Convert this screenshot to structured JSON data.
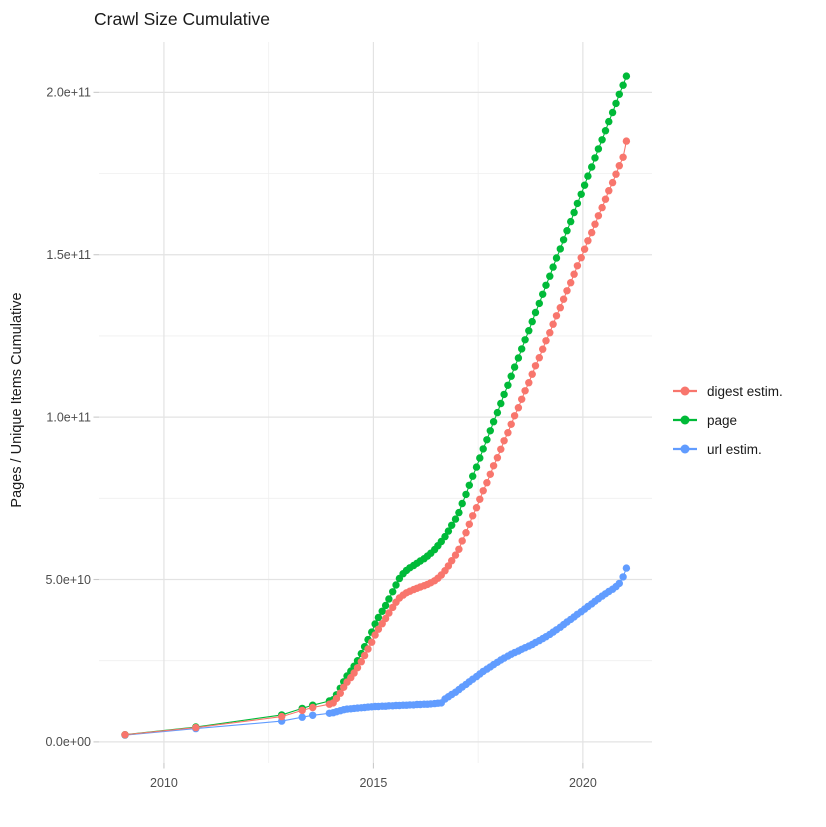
{
  "title": "Crawl Size Cumulative",
  "axes": {
    "y_title": "Pages / Unique Items Cumulative",
    "x_ticks": [
      {
        "value": 2010,
        "label": "2010"
      },
      {
        "value": 2015,
        "label": "2015"
      },
      {
        "value": 2020,
        "label": "2020"
      }
    ],
    "x_minor": [
      2012.5,
      2017.5
    ],
    "y_ticks": [
      {
        "value": 0,
        "label": "0.0e+00"
      },
      {
        "value": 50,
        "label": "5.0e+10"
      },
      {
        "value": 100,
        "label": "1.0e+11"
      },
      {
        "value": 150,
        "label": "1.5e+11"
      },
      {
        "value": 200,
        "label": "2.0e+11"
      }
    ],
    "y_minor": [
      25,
      75,
      125,
      175
    ]
  },
  "legend": [
    {
      "label": "digest estim.",
      "color": "#F8766D"
    },
    {
      "label": "page",
      "color": "#00BA38"
    },
    {
      "label": "url estim.",
      "color": "#619CFF"
    }
  ],
  "colors": {
    "grid_major": "#e3e3e3",
    "grid_minor": "#efefef",
    "tick_mark": "#c9c9c9",
    "tick_text": "#4d4d4d"
  },
  "chart_data": {
    "type": "scatter",
    "title": "Crawl Size Cumulative",
    "xlabel": "",
    "ylabel": "Pages / Unique Items Cumulative",
    "x_unit": "year",
    "value_scale": 1000000000.0,
    "xlim": [
      2008.45,
      2021.65
    ],
    "ylim": [
      -6.5,
      215.5
    ],
    "grid": true,
    "legend_position": "right",
    "draw_order": [
      "url estim.",
      "page",
      "digest estim."
    ],
    "series": [
      {
        "name": "digest estim.",
        "color": "#F8766D",
        "points": [
          [
            2009.07,
            2.2
          ],
          [
            2010.76,
            4.4
          ],
          [
            2012.81,
            7.8
          ],
          [
            2013.3,
            9.7
          ],
          [
            2013.55,
            10.6
          ],
          [
            2013.95,
            11.6
          ],
          [
            2014.04,
            12.0
          ],
          [
            2014.12,
            13.4
          ],
          [
            2014.21,
            15.0
          ],
          [
            2014.29,
            16.8
          ],
          [
            2014.37,
            18.4
          ],
          [
            2014.46,
            19.8
          ],
          [
            2014.54,
            21.2
          ],
          [
            2014.62,
            22.8
          ],
          [
            2014.71,
            24.7
          ],
          [
            2014.79,
            26.6
          ],
          [
            2014.87,
            28.6
          ],
          [
            2014.96,
            30.7
          ],
          [
            2015.04,
            32.9
          ],
          [
            2015.12,
            34.7
          ],
          [
            2015.21,
            36.4
          ],
          [
            2015.29,
            38.0
          ],
          [
            2015.37,
            39.7
          ],
          [
            2015.46,
            41.4
          ],
          [
            2015.54,
            43.0
          ],
          [
            2015.62,
            44.3
          ],
          [
            2015.71,
            45.2
          ],
          [
            2015.79,
            45.9
          ],
          [
            2015.87,
            46.4
          ],
          [
            2015.96,
            46.9
          ],
          [
            2016.04,
            47.3
          ],
          [
            2016.12,
            47.7
          ],
          [
            2016.21,
            48.1
          ],
          [
            2016.29,
            48.5
          ],
          [
            2016.37,
            49.0
          ],
          [
            2016.46,
            49.6
          ],
          [
            2016.54,
            50.4
          ],
          [
            2016.62,
            51.4
          ],
          [
            2016.71,
            52.7
          ],
          [
            2016.79,
            54.2
          ],
          [
            2016.87,
            55.8
          ],
          [
            2016.96,
            57.5
          ],
          [
            2017.04,
            59.3
          ],
          [
            2017.12,
            61.9
          ],
          [
            2017.21,
            64.4
          ],
          [
            2017.29,
            67.0
          ],
          [
            2017.37,
            69.6
          ],
          [
            2017.46,
            72.1
          ],
          [
            2017.54,
            74.7
          ],
          [
            2017.62,
            77.3
          ],
          [
            2017.71,
            79.8
          ],
          [
            2017.79,
            82.4
          ],
          [
            2017.87,
            85.0
          ],
          [
            2017.96,
            87.5
          ],
          [
            2018.04,
            90.1
          ],
          [
            2018.12,
            92.7
          ],
          [
            2018.21,
            95.2
          ],
          [
            2018.29,
            97.8
          ],
          [
            2018.37,
            100.4
          ],
          [
            2018.46,
            102.9
          ],
          [
            2018.54,
            105.5
          ],
          [
            2018.62,
            108.1
          ],
          [
            2018.71,
            110.6
          ],
          [
            2018.79,
            113.2
          ],
          [
            2018.87,
            115.8
          ],
          [
            2018.96,
            118.3
          ],
          [
            2019.04,
            120.9
          ],
          [
            2019.12,
            123.5
          ],
          [
            2019.21,
            126.0
          ],
          [
            2019.29,
            128.6
          ],
          [
            2019.37,
            131.2
          ],
          [
            2019.46,
            133.7
          ],
          [
            2019.54,
            136.3
          ],
          [
            2019.62,
            138.9
          ],
          [
            2019.71,
            141.4
          ],
          [
            2019.79,
            144.0
          ],
          [
            2019.87,
            146.6
          ],
          [
            2019.96,
            149.1
          ],
          [
            2020.04,
            151.7
          ],
          [
            2020.12,
            154.3
          ],
          [
            2020.21,
            156.8
          ],
          [
            2020.29,
            159.4
          ],
          [
            2020.37,
            162.0
          ],
          [
            2020.46,
            164.5
          ],
          [
            2020.54,
            167.1
          ],
          [
            2020.62,
            169.7
          ],
          [
            2020.71,
            172.2
          ],
          [
            2020.79,
            174.8
          ],
          [
            2020.87,
            177.4
          ],
          [
            2020.96,
            180.0
          ],
          [
            2021.04,
            185.0
          ]
        ]
      },
      {
        "name": "page",
        "color": "#00BA38",
        "points": [
          [
            2009.07,
            2.2
          ],
          [
            2010.76,
            4.6
          ],
          [
            2012.81,
            8.3
          ],
          [
            2013.3,
            10.3
          ],
          [
            2013.55,
            11.3
          ],
          [
            2013.95,
            12.6
          ],
          [
            2014.04,
            13.0
          ],
          [
            2014.12,
            14.5
          ],
          [
            2014.21,
            16.5
          ],
          [
            2014.29,
            18.5
          ],
          [
            2014.37,
            20.3
          ],
          [
            2014.46,
            21.8
          ],
          [
            2014.54,
            23.3
          ],
          [
            2014.62,
            25.0
          ],
          [
            2014.71,
            27.2
          ],
          [
            2014.79,
            29.3
          ],
          [
            2014.87,
            31.5
          ],
          [
            2014.96,
            33.8
          ],
          [
            2015.04,
            36.3
          ],
          [
            2015.12,
            38.3
          ],
          [
            2015.21,
            40.2
          ],
          [
            2015.29,
            42.0
          ],
          [
            2015.37,
            44.0
          ],
          [
            2015.46,
            46.2
          ],
          [
            2015.54,
            48.3
          ],
          [
            2015.62,
            50.3
          ],
          [
            2015.71,
            51.8
          ],
          [
            2015.79,
            52.8
          ],
          [
            2015.87,
            53.6
          ],
          [
            2015.96,
            54.3
          ],
          [
            2016.04,
            55.0
          ],
          [
            2016.12,
            55.7
          ],
          [
            2016.21,
            56.4
          ],
          [
            2016.29,
            57.2
          ],
          [
            2016.37,
            58.1
          ],
          [
            2016.46,
            59.2
          ],
          [
            2016.54,
            60.4
          ],
          [
            2016.62,
            61.7
          ],
          [
            2016.71,
            63.2
          ],
          [
            2016.79,
            64.9
          ],
          [
            2016.87,
            66.7
          ],
          [
            2016.96,
            68.6
          ],
          [
            2017.04,
            70.6
          ],
          [
            2017.12,
            73.4
          ],
          [
            2017.21,
            76.2
          ],
          [
            2017.29,
            79.0
          ],
          [
            2017.37,
            81.8
          ],
          [
            2017.46,
            84.6
          ],
          [
            2017.54,
            87.4
          ],
          [
            2017.62,
            90.2
          ],
          [
            2017.71,
            93.0
          ],
          [
            2017.79,
            95.8
          ],
          [
            2017.87,
            98.6
          ],
          [
            2017.96,
            101.4
          ],
          [
            2018.04,
            104.2
          ],
          [
            2018.12,
            107.0
          ],
          [
            2018.21,
            109.8
          ],
          [
            2018.29,
            112.6
          ],
          [
            2018.37,
            115.4
          ],
          [
            2018.46,
            118.2
          ],
          [
            2018.54,
            121.0
          ],
          [
            2018.62,
            123.8
          ],
          [
            2018.71,
            126.6
          ],
          [
            2018.79,
            129.4
          ],
          [
            2018.87,
            132.2
          ],
          [
            2018.96,
            135.0
          ],
          [
            2019.04,
            137.8
          ],
          [
            2019.12,
            140.6
          ],
          [
            2019.21,
            143.4
          ],
          [
            2019.29,
            146.2
          ],
          [
            2019.37,
            149.0
          ],
          [
            2019.46,
            151.8
          ],
          [
            2019.54,
            154.6
          ],
          [
            2019.62,
            157.4
          ],
          [
            2019.71,
            160.2
          ],
          [
            2019.79,
            163.0
          ],
          [
            2019.87,
            165.8
          ],
          [
            2019.96,
            168.6
          ],
          [
            2020.04,
            171.4
          ],
          [
            2020.12,
            174.2
          ],
          [
            2020.21,
            177.0
          ],
          [
            2020.29,
            179.8
          ],
          [
            2020.37,
            182.6
          ],
          [
            2020.46,
            185.4
          ],
          [
            2020.54,
            188.2
          ],
          [
            2020.62,
            191.0
          ],
          [
            2020.71,
            193.8
          ],
          [
            2020.79,
            196.6
          ],
          [
            2020.87,
            199.4
          ],
          [
            2020.96,
            202.2
          ],
          [
            2021.04,
            205.0
          ]
        ]
      },
      {
        "name": "url estim.",
        "color": "#619CFF",
        "points": [
          [
            2009.07,
            2.1
          ],
          [
            2010.76,
            4.1
          ],
          [
            2012.81,
            6.4
          ],
          [
            2013.3,
            7.6
          ],
          [
            2013.55,
            8.2
          ],
          [
            2013.95,
            8.8
          ],
          [
            2014.04,
            9.0
          ],
          [
            2014.12,
            9.3
          ],
          [
            2014.21,
            9.6
          ],
          [
            2014.29,
            9.9
          ],
          [
            2014.37,
            10.1
          ],
          [
            2014.46,
            10.2
          ],
          [
            2014.54,
            10.3
          ],
          [
            2014.62,
            10.4
          ],
          [
            2014.71,
            10.5
          ],
          [
            2014.79,
            10.6
          ],
          [
            2014.87,
            10.7
          ],
          [
            2014.96,
            10.8
          ],
          [
            2015.04,
            10.9
          ],
          [
            2015.12,
            10.9
          ],
          [
            2015.21,
            11.0
          ],
          [
            2015.29,
            11.0
          ],
          [
            2015.37,
            11.1
          ],
          [
            2015.46,
            11.1
          ],
          [
            2015.54,
            11.2
          ],
          [
            2015.62,
            11.2
          ],
          [
            2015.71,
            11.3
          ],
          [
            2015.79,
            11.3
          ],
          [
            2015.87,
            11.4
          ],
          [
            2015.96,
            11.4
          ],
          [
            2016.04,
            11.5
          ],
          [
            2016.12,
            11.5
          ],
          [
            2016.21,
            11.6
          ],
          [
            2016.29,
            11.6
          ],
          [
            2016.37,
            11.7
          ],
          [
            2016.46,
            11.8
          ],
          [
            2016.54,
            11.9
          ],
          [
            2016.62,
            12.0
          ],
          [
            2016.71,
            13.2
          ],
          [
            2016.79,
            13.9
          ],
          [
            2016.87,
            14.6
          ],
          [
            2016.96,
            15.3
          ],
          [
            2017.04,
            16.1
          ],
          [
            2017.12,
            16.9
          ],
          [
            2017.21,
            17.7
          ],
          [
            2017.29,
            18.5
          ],
          [
            2017.37,
            19.3
          ],
          [
            2017.46,
            20.1
          ],
          [
            2017.54,
            20.9
          ],
          [
            2017.62,
            21.7
          ],
          [
            2017.71,
            22.4
          ],
          [
            2017.79,
            23.1
          ],
          [
            2017.87,
            23.8
          ],
          [
            2017.96,
            24.5
          ],
          [
            2018.04,
            25.2
          ],
          [
            2018.12,
            25.8
          ],
          [
            2018.21,
            26.4
          ],
          [
            2018.29,
            27.0
          ],
          [
            2018.37,
            27.5
          ],
          [
            2018.46,
            28.0
          ],
          [
            2018.54,
            28.5
          ],
          [
            2018.62,
            29.0
          ],
          [
            2018.71,
            29.5
          ],
          [
            2018.79,
            30.0
          ],
          [
            2018.87,
            30.6
          ],
          [
            2018.96,
            31.2
          ],
          [
            2019.04,
            31.8
          ],
          [
            2019.12,
            32.4
          ],
          [
            2019.21,
            33.1
          ],
          [
            2019.29,
            33.8
          ],
          [
            2019.37,
            34.5
          ],
          [
            2019.46,
            35.3
          ],
          [
            2019.54,
            36.1
          ],
          [
            2019.62,
            36.9
          ],
          [
            2019.71,
            37.7
          ],
          [
            2019.79,
            38.5
          ],
          [
            2019.87,
            39.3
          ],
          [
            2019.96,
            40.1
          ],
          [
            2020.04,
            40.9
          ],
          [
            2020.12,
            41.7
          ],
          [
            2020.21,
            42.5
          ],
          [
            2020.29,
            43.3
          ],
          [
            2020.37,
            44.1
          ],
          [
            2020.46,
            44.9
          ],
          [
            2020.54,
            45.6
          ],
          [
            2020.62,
            46.3
          ],
          [
            2020.71,
            47.0
          ],
          [
            2020.79,
            47.8
          ],
          [
            2020.87,
            48.8
          ],
          [
            2020.96,
            50.8
          ],
          [
            2021.04,
            53.5
          ]
        ]
      }
    ]
  }
}
